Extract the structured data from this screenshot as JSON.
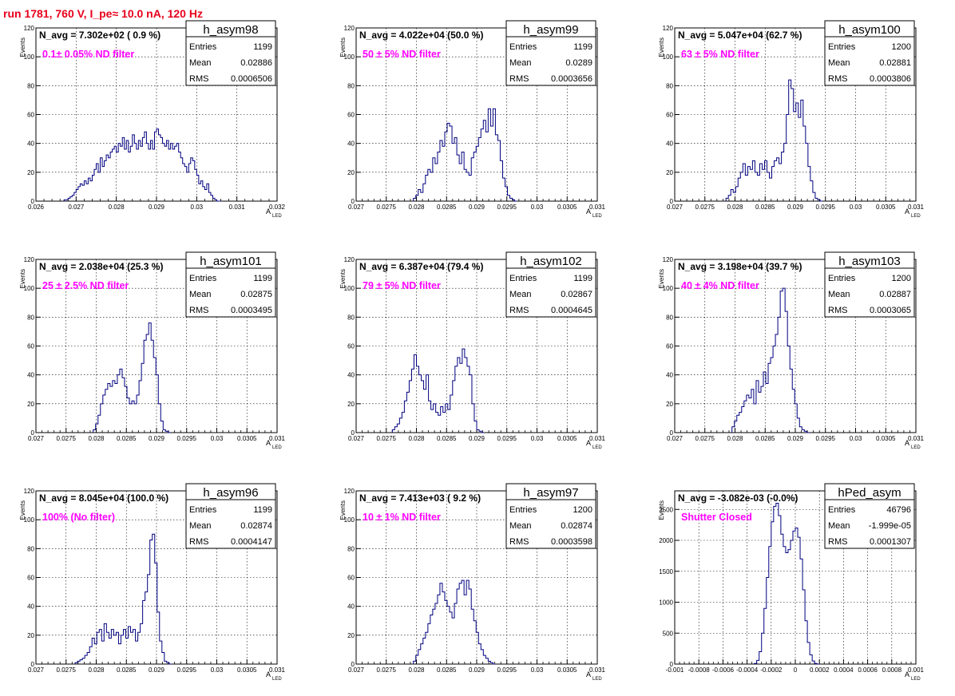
{
  "page_title": "run 1781,   760 V, I_pe≈ 10.0 nA, 120 Hz",
  "common": {
    "ylabel": "Events",
    "xlabel_main": "A",
    "xlabel_sub": "LED",
    "stats_labels": [
      "Entries",
      "Mean",
      "RMS"
    ],
    "line_color": "#000080",
    "annotation_color": "#ff00ff",
    "grid": true
  },
  "chart_data": [
    {
      "type": "histogram",
      "name": "h_asym98",
      "navg": "N_avg = 7.302e+02 ( 0.9 %)",
      "annotation": "0.1± 0.05% ND filter",
      "stats": {
        "Entries": "1199",
        "Mean": "0.02886",
        "RMS": "0.0006506"
      },
      "xlim": [
        0.026,
        0.032
      ],
      "ylim": [
        0,
        120
      ],
      "xticks": [
        "0.026",
        "0.027",
        "0.028",
        "0.029",
        "0.03",
        "0.031",
        "0.032"
      ],
      "yticks": [
        "0",
        "20",
        "40",
        "60",
        "80",
        "100",
        "120"
      ],
      "bin_start": 0.0267,
      "bin_width": 5e-05,
      "values": [
        1,
        1,
        2,
        3,
        4,
        6,
        8,
        10,
        12,
        11,
        14,
        12,
        16,
        14,
        18,
        22,
        26,
        20,
        30,
        24,
        28,
        32,
        30,
        34,
        36,
        38,
        34,
        40,
        38,
        44,
        36,
        42,
        34,
        38,
        46,
        40,
        36,
        42,
        38,
        44,
        48,
        40,
        36,
        42,
        36,
        48,
        50,
        46,
        44,
        40,
        38,
        42,
        36,
        40,
        36,
        38,
        40,
        34,
        30,
        26,
        24,
        20,
        26,
        30,
        28,
        22,
        18,
        12,
        14,
        10,
        8,
        12,
        6,
        4,
        2,
        1,
        0,
        0
      ]
    },
    {
      "type": "histogram",
      "name": "h_asym99",
      "navg": "N_avg = 4.022e+04 (50.0 %)",
      "annotation": "50 ± 5% ND filter",
      "stats": {
        "Entries": "1199",
        "Mean": "0.0289",
        "RMS": "0.0003656"
      },
      "xlim": [
        0.027,
        0.031
      ],
      "ylim": [
        0,
        120
      ],
      "xticks": [
        "0.027",
        "0.0275",
        "0.028",
        "0.0285",
        "0.029",
        "0.0295",
        "0.03",
        "0.0305",
        "0.031"
      ],
      "yticks": [
        "0",
        "20",
        "40",
        "60",
        "80",
        "100",
        "120"
      ],
      "bin_start": 0.02795,
      "bin_width": 4e-05,
      "values": [
        2,
        4,
        8,
        6,
        12,
        18,
        22,
        20,
        30,
        26,
        34,
        42,
        38,
        48,
        54,
        52,
        40,
        44,
        32,
        26,
        34,
        22,
        20,
        18,
        30,
        34,
        38,
        44,
        50,
        56,
        48,
        64,
        52,
        64,
        46,
        42,
        28,
        16,
        10,
        4,
        2,
        1,
        0
      ]
    },
    {
      "type": "histogram",
      "name": "h_asym100",
      "navg": "N_avg = 5.047e+04 (62.7 %)",
      "annotation": "63 ± 5% ND filter",
      "stats": {
        "Entries": "1200",
        "Mean": "0.02881",
        "RMS": "0.0003806"
      },
      "xlim": [
        0.027,
        0.031
      ],
      "ylim": [
        0,
        120
      ],
      "xticks": [
        "0.027",
        "0.0275",
        "0.028",
        "0.0285",
        "0.029",
        "0.0295",
        "0.03",
        "0.0305",
        "0.031"
      ],
      "yticks": [
        "0",
        "20",
        "40",
        "60",
        "80",
        "100",
        "120"
      ],
      "bin_start": 0.02785,
      "bin_width": 4e-05,
      "values": [
        2,
        4,
        8,
        6,
        10,
        16,
        20,
        26,
        18,
        24,
        22,
        28,
        20,
        18,
        26,
        22,
        28,
        20,
        16,
        24,
        28,
        30,
        26,
        34,
        40,
        60,
        84,
        78,
        62,
        68,
        58,
        70,
        52,
        40,
        24,
        14,
        6,
        2,
        1,
        0
      ]
    },
    {
      "type": "histogram",
      "name": "h_asym101",
      "navg": "N_avg = 2.038e+04 (25.3 %)",
      "annotation": "25 ± 2.5% ND filter",
      "stats": {
        "Entries": "1199",
        "Mean": "0.02875",
        "RMS": "0.0003495"
      },
      "xlim": [
        0.027,
        0.031
      ],
      "ylim": [
        0,
        120
      ],
      "xticks": [
        "0.027",
        "0.0275",
        "0.028",
        "0.0285",
        "0.029",
        "0.0295",
        "0.03",
        "0.0305",
        "0.031"
      ],
      "yticks": [
        "0",
        "20",
        "40",
        "60",
        "80",
        "100",
        "120"
      ],
      "bin_start": 0.02795,
      "bin_width": 4e-05,
      "values": [
        2,
        6,
        12,
        20,
        26,
        30,
        34,
        32,
        36,
        34,
        40,
        44,
        38,
        32,
        24,
        20,
        22,
        20,
        26,
        36,
        48,
        64,
        68,
        76,
        64,
        52,
        40,
        20,
        8,
        2,
        1,
        0
      ]
    },
    {
      "type": "histogram",
      "name": "h_asym102",
      "navg": "N_avg = 6.387e+04 (79.4 %)",
      "annotation": "79 ± 5% ND filter",
      "stats": {
        "Entries": "1199",
        "Mean": "0.02867",
        "RMS": "0.0004645"
      },
      "xlim": [
        0.027,
        0.031
      ],
      "ylim": [
        0,
        120
      ],
      "xticks": [
        "0.027",
        "0.0275",
        "0.028",
        "0.0285",
        "0.029",
        "0.0295",
        "0.03",
        "0.0305",
        "0.031"
      ],
      "yticks": [
        "0",
        "20",
        "40",
        "60",
        "80",
        "100",
        "120"
      ],
      "bin_start": 0.0276,
      "bin_width": 4e-05,
      "values": [
        2,
        4,
        6,
        10,
        14,
        22,
        28,
        36,
        44,
        54,
        46,
        40,
        36,
        30,
        40,
        22,
        16,
        20,
        14,
        12,
        18,
        14,
        20,
        16,
        26,
        36,
        46,
        52,
        48,
        58,
        52,
        46,
        40,
        20,
        8,
        2,
        1,
        0
      ]
    },
    {
      "type": "histogram",
      "name": "h_asym103",
      "navg": "N_avg = 3.198e+04 (39.7 %)",
      "annotation": "40 ± 4% ND filter",
      "stats": {
        "Entries": "1200",
        "Mean": "0.02887",
        "RMS": "0.0003065"
      },
      "xlim": [
        0.027,
        0.031
      ],
      "ylim": [
        0,
        120
      ],
      "xticks": [
        "0.027",
        "0.0275",
        "0.028",
        "0.0285",
        "0.029",
        "0.0295",
        "0.03",
        "0.0305",
        "0.031"
      ],
      "yticks": [
        "0",
        "20",
        "40",
        "60",
        "80",
        "100",
        "120"
      ],
      "bin_start": 0.02795,
      "bin_width": 4e-05,
      "values": [
        4,
        8,
        12,
        14,
        18,
        22,
        26,
        24,
        30,
        20,
        36,
        28,
        32,
        42,
        34,
        48,
        52,
        60,
        68,
        80,
        98,
        100,
        84,
        60,
        44,
        30,
        20,
        10,
        4,
        2,
        1,
        0
      ]
    },
    {
      "type": "histogram",
      "name": "h_asym96",
      "navg": "N_avg = 8.045e+04 (100.0 %)",
      "annotation": "100% (No filter)",
      "stats": {
        "Entries": "1199",
        "Mean": "0.02874",
        "RMS": "0.0004147"
      },
      "xlim": [
        0.027,
        0.031
      ],
      "ylim": [
        0,
        120
      ],
      "xticks": [
        "0.027",
        "0.0275",
        "0.028",
        "0.0285",
        "0.029",
        "0.0295",
        "0.03",
        "0.0305",
        "0.031"
      ],
      "yticks": [
        "0",
        "20",
        "40",
        "60",
        "80",
        "100",
        "120"
      ],
      "bin_start": 0.02765,
      "bin_width": 4e-05,
      "values": [
        1,
        2,
        3,
        4,
        6,
        8,
        12,
        18,
        14,
        22,
        24,
        16,
        28,
        22,
        18,
        24,
        20,
        22,
        14,
        20,
        24,
        18,
        26,
        22,
        24,
        16,
        22,
        28,
        44,
        50,
        62,
        86,
        90,
        70,
        36,
        16,
        8,
        2,
        1,
        0
      ]
    },
    {
      "type": "histogram",
      "name": "h_asym97",
      "navg": "N_avg = 7.413e+03 ( 9.2 %)",
      "annotation": "10 ± 1% ND filter",
      "stats": {
        "Entries": "1200",
        "Mean": "0.02874",
        "RMS": "0.0003598"
      },
      "xlim": [
        0.027,
        0.031
      ],
      "ylim": [
        0,
        120
      ],
      "xticks": [
        "0.027",
        "0.0275",
        "0.028",
        "0.0285",
        "0.029",
        "0.0295",
        "0.03",
        "0.0305",
        "0.031"
      ],
      "yticks": [
        "0",
        "20",
        "40",
        "60",
        "80",
        "100",
        "120"
      ],
      "bin_start": 0.02795,
      "bin_width": 4e-05,
      "values": [
        2,
        6,
        10,
        14,
        18,
        22,
        28,
        34,
        38,
        42,
        48,
        56,
        50,
        44,
        40,
        36,
        32,
        42,
        52,
        56,
        58,
        48,
        58,
        52,
        38,
        30,
        22,
        14,
        10,
        6,
        4,
        2,
        1,
        0
      ]
    },
    {
      "type": "histogram",
      "name": "hPed_asym",
      "navg": "N_avg = -3.082e-03 (-0.0%)",
      "annotation": "Shutter Closed",
      "stats": {
        "Entries": "46796",
        "Mean": "-1.999e-05",
        "RMS": "0.0001307"
      },
      "xlim": [
        -0.001,
        0.001
      ],
      "ylim": [
        0,
        2800
      ],
      "xticks": [
        "-0.001",
        "-0.0008",
        "-0.0006",
        "-0.0004",
        "-0.0002",
        "0",
        "0.0002",
        "0.0004",
        "0.0006",
        "0.0008",
        "0.001"
      ],
      "yticks": [
        "0",
        "500",
        "1000",
        "1500",
        "2000",
        "2500"
      ],
      "bin_start": -0.00034,
      "bin_width": 2e-05,
      "values": [
        10,
        60,
        200,
        500,
        900,
        1400,
        1900,
        2300,
        2550,
        2600,
        2400,
        2100,
        1900,
        1800,
        1850,
        2000,
        2150,
        2200,
        2050,
        1700,
        1200,
        700,
        350,
        150,
        50,
        10,
        0
      ]
    }
  ]
}
